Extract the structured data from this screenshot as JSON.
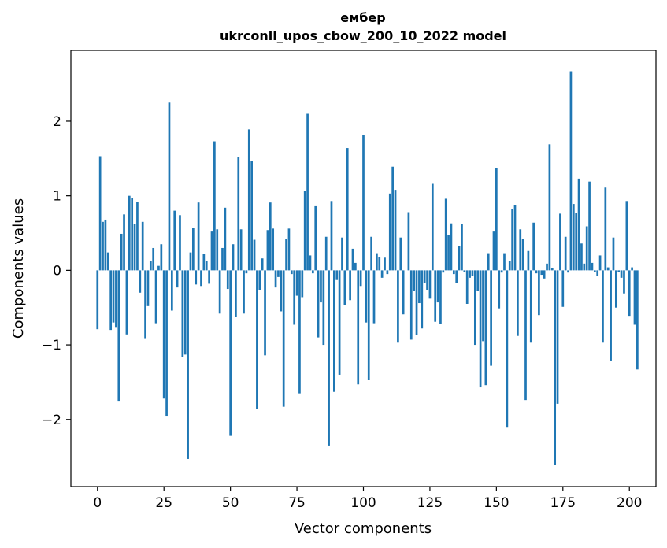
{
  "chart_data": {
    "type": "bar",
    "title_line1": "ембер",
    "title_line2": "ukrconll_upos_cbow_200_10_2022 model",
    "xlabel": "Vector components",
    "ylabel": "Components values",
    "xlim": [
      -10,
      210
    ],
    "ylim": [
      -2.9,
      2.95
    ],
    "x_ticks": [
      0,
      25,
      50,
      75,
      100,
      125,
      150,
      175,
      200
    ],
    "x_tick_labels": [
      "0",
      "25",
      "50",
      "75",
      "100",
      "125",
      "150",
      "175",
      "200"
    ],
    "y_ticks": [
      -2,
      -1,
      0,
      1,
      2
    ],
    "y_tick_labels": [
      "−2",
      "−1",
      "0",
      "1",
      "2"
    ],
    "bar_color": "#1f77b4",
    "values": [
      -0.79,
      1.53,
      0.65,
      0.68,
      0.24,
      -0.8,
      -0.7,
      -0.76,
      -1.75,
      0.49,
      0.75,
      -0.86,
      1.0,
      0.97,
      0.62,
      0.92,
      -0.3,
      0.65,
      -0.91,
      -0.48,
      0.13,
      0.3,
      -0.71,
      0.06,
      0.35,
      -1.72,
      -1.95,
      2.25,
      -0.54,
      0.8,
      -0.23,
      0.74,
      -1.16,
      -1.13,
      -2.53,
      0.24,
      0.57,
      -0.19,
      0.91,
      -0.21,
      0.22,
      0.12,
      -0.18,
      0.52,
      1.73,
      0.55,
      -0.58,
      0.3,
      0.84,
      -0.25,
      -2.22,
      0.35,
      -0.62,
      1.52,
      0.55,
      -0.58,
      -0.04,
      1.89,
      1.47,
      0.41,
      -1.86,
      -0.26,
      0.16,
      -1.14,
      0.54,
      0.91,
      0.56,
      -0.23,
      -0.09,
      -0.55,
      -1.83,
      0.42,
      0.56,
      -0.05,
      -0.73,
      -0.34,
      -1.65,
      -0.36,
      1.07,
      2.1,
      0.2,
      -0.04,
      0.86,
      -0.9,
      -0.43,
      -1.0,
      0.45,
      -2.35,
      0.93,
      -1.63,
      -0.12,
      -1.4,
      0.44,
      -0.47,
      1.64,
      -0.4,
      0.29,
      0.1,
      -1.53,
      -0.21,
      1.81,
      -0.7,
      -1.47,
      0.45,
      -0.71,
      0.23,
      0.18,
      -0.1,
      0.17,
      -0.05,
      1.03,
      1.39,
      1.08,
      -0.96,
      0.44,
      -0.59,
      0.0,
      0.78,
      -0.93,
      -0.28,
      -0.87,
      -0.44,
      -0.78,
      -0.17,
      -0.26,
      -0.38,
      1.16,
      -0.69,
      -0.43,
      -0.72,
      -0.03,
      0.96,
      0.47,
      0.63,
      -0.05,
      -0.17,
      0.33,
      0.62,
      -0.02,
      -0.45,
      -0.1,
      -0.07,
      -1.0,
      -0.28,
      -1.57,
      -0.95,
      -1.54,
      0.23,
      -1.28,
      0.52,
      1.37,
      -0.51,
      -0.03,
      0.23,
      -2.1,
      0.12,
      0.82,
      0.88,
      -0.88,
      0.55,
      0.42,
      -1.74,
      0.26,
      -0.96,
      0.64,
      -0.04,
      -0.6,
      -0.06,
      -0.11,
      0.09,
      1.69,
      0.03,
      -2.61,
      -1.79,
      0.76,
      -0.49,
      0.45,
      -0.03,
      2.67,
      0.89,
      0.77,
      1.23,
      0.36,
      0.09,
      0.59,
      1.19,
      0.1,
      -0.02,
      -0.07,
      0.2,
      -0.96,
      1.11,
      0.04,
      -1.21,
      0.44,
      -0.5,
      -0.02,
      -0.1,
      -0.31,
      0.93,
      -0.61,
      0.04,
      -0.73,
      -1.33
    ]
  }
}
